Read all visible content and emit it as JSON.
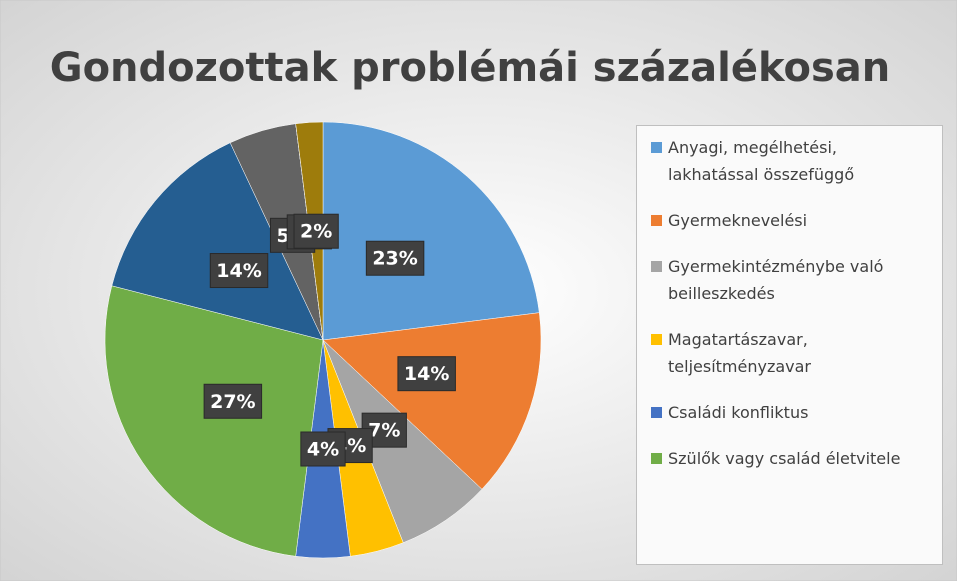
{
  "chart_data": {
    "type": "pie",
    "title": "Gondozottak problémái százalékosan",
    "categories": [
      "Anyagi, megélhetési, lakhatással összefüggő",
      "Gyermeknevelési",
      "Gyermekintézménybe való beilleszkedés",
      "Magatartászavar, teljesítményzavar",
      "Családi konfliktus",
      "Szülők vagy család életvitele",
      null,
      null,
      null,
      null
    ],
    "values": [
      23,
      14,
      7,
      4,
      4,
      27,
      14,
      5,
      0,
      2
    ],
    "value_labels": [
      "23%",
      "14%",
      "7%",
      "4%",
      "4%",
      "27%",
      "14%",
      "5%",
      "0%",
      "2%"
    ],
    "colors": [
      "#5b9bd5",
      "#ed7d31",
      "#a5a5a5",
      "#ffc000",
      "#4472c4",
      "#70ad47",
      "#255e91",
      "#636363",
      "#264478",
      "#9e7c0c"
    ]
  }
}
